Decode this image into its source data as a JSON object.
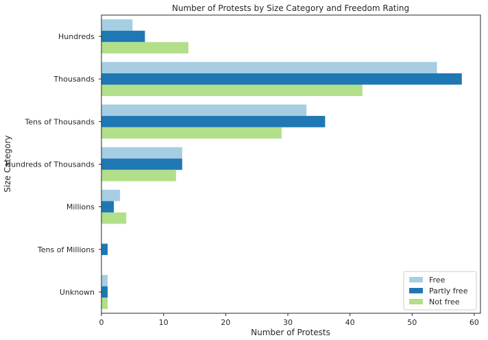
{
  "chart_data": {
    "type": "bar",
    "orientation": "horizontal",
    "title": "Number of Protests by Size Category and Freedom Rating",
    "xlabel": "Number of Protests",
    "ylabel": "Size Category",
    "categories": [
      "Hundreds",
      "Thousands",
      "Tens of Thousands",
      "Hundreds of Thousands",
      "Millions",
      "Tens of Millions",
      "Unknown"
    ],
    "series": [
      {
        "name": "Free",
        "color": "#a6cee3",
        "values": [
          5,
          54,
          33,
          13,
          3,
          0,
          1
        ]
      },
      {
        "name": "Partly free",
        "color": "#1f78b4",
        "values": [
          7,
          58,
          36,
          13,
          2,
          1,
          1
        ]
      },
      {
        "name": "Not free",
        "color": "#b2df8a",
        "values": [
          14,
          42,
          29,
          12,
          4,
          0,
          1
        ]
      }
    ],
    "xlim": [
      0,
      61
    ],
    "xticks": [
      0,
      10,
      20,
      30,
      40,
      50,
      60
    ],
    "grid": false,
    "legend_position": "lower right"
  }
}
